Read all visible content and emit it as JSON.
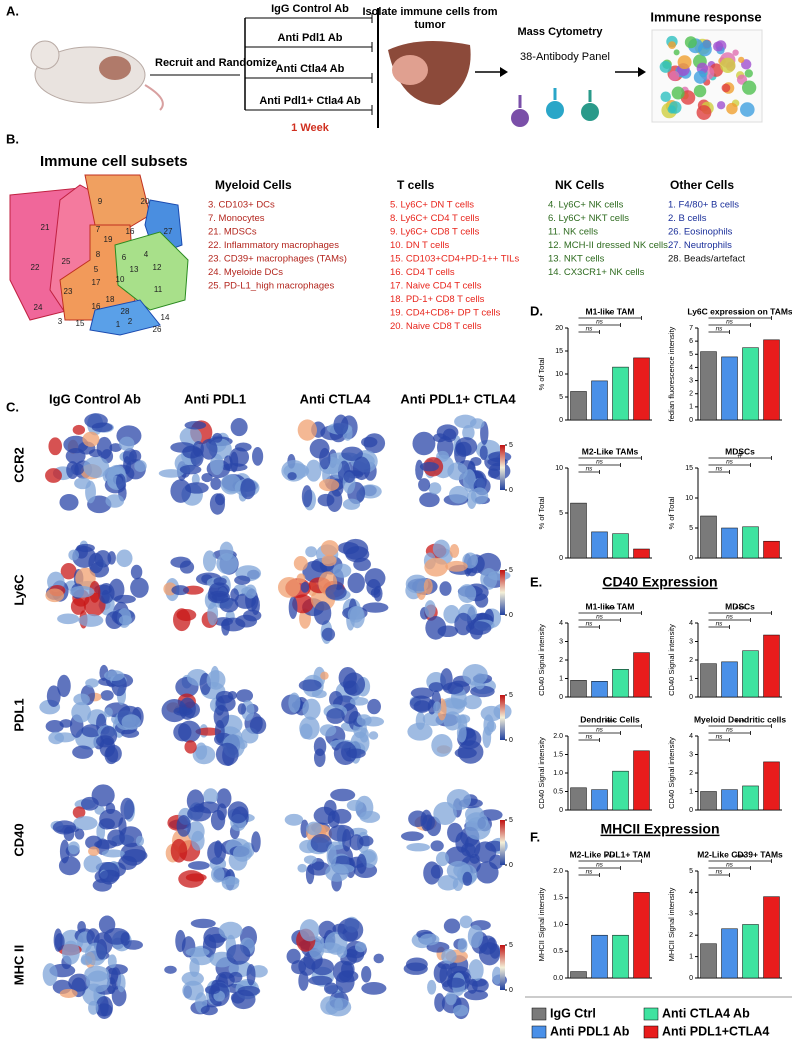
{
  "panel_a": {
    "letter": "A.",
    "recruit": "Recruit and Randomize",
    "treatments": [
      "IgG Control Ab",
      "Anti Pdl1 Ab",
      "Anti Ctla4 Ab",
      "Anti Pdl1+ Ctla4 Ab"
    ],
    "duration": "1 Week",
    "isolate": "Isolate immune cells from tumor",
    "method": "Mass Cytometry",
    "panel": "38-Antibody Panel",
    "result": "Immune response"
  },
  "panel_b": {
    "letter": "B.",
    "title": "Immune cell subsets",
    "map_labels": [
      "9",
      "20",
      "21",
      "7",
      "27",
      "19",
      "16",
      "8",
      "6",
      "4",
      "5",
      "12",
      "13",
      "25",
      "22",
      "17",
      "11",
      "23",
      "10",
      "18",
      "16",
      "28",
      "14",
      "24",
      "3",
      "15",
      "1",
      "2",
      "26"
    ],
    "groups": [
      {
        "title": "Myeloid Cells",
        "color": "#b3261e",
        "items": [
          "3. CD103+ DCs",
          "7. Monocytes",
          "21. MDSCs",
          "22. Inflammatory macrophages",
          "23. CD39+ macrophages (TAMs)",
          "24. Myeloide DCs",
          "25. PD-L1_high macrophages"
        ]
      },
      {
        "title": "T cells",
        "color": "#e8251c",
        "items": [
          "5. Ly6C+ DN T cells",
          "8. Ly6C+ CD4 T cells",
          "9. Ly6C+ CD8 T cells",
          "10. DN T cells",
          "15. CD103+CD4+PD-1++ TILs",
          "16. CD4 T cells",
          "17. Naive CD4 T cells",
          "18. PD-1+ CD8 T cells",
          "19. CD4+CD8+ DP T cells",
          "20. Naive CD8 T cells"
        ]
      },
      {
        "title": "NK Cells",
        "color": "#2e6b1f",
        "items": [
          "4. Ly6C+ NK cells",
          "6. Ly6C+ NKT cells",
          "11. NK cells",
          "12. MCH-II dressed NK cells",
          "13. NKT cells",
          "14. CX3CR1+ NK cells"
        ]
      },
      {
        "title": "Other Cells",
        "color": "#1a2f9a",
        "colors": [
          "#1a2f9a",
          "#1a2f9a",
          "#1a2f9a",
          "#1a2f9a",
          "#111111"
        ],
        "items": [
          "1. F4/80+ B cells",
          "2. B cells",
          "26. Eosinophils",
          "27. Neutrophils",
          "28. Beads/artefact"
        ]
      }
    ]
  },
  "panel_c": {
    "letter": "C.",
    "columns": [
      "IgG Control Ab",
      "Anti PDL1",
      "Anti CTLA4",
      "Anti PDL1+ CTLA4"
    ],
    "rows": [
      "CCR2",
      "Ly6C",
      "PDL1",
      "CD40",
      "MHC II"
    ],
    "colorbar_ticks": [
      0,
      5
    ]
  },
  "panel_d": {
    "letter": "D."
  },
  "panel_e": {
    "letter": "E.",
    "title": "CD40 Expression"
  },
  "panel_f": {
    "letter": "F.",
    "title": "MHCII Expression"
  },
  "legend": [
    {
      "name": "IgG Ctrl",
      "color": "#7a7a7a"
    },
    {
      "name": "Anti CTLA4 Ab",
      "color": "#3fe3a0"
    },
    {
      "name": "Anti PDL1 Ab",
      "color": "#4a90e8"
    },
    {
      "name": "Anti PDL1+CTLA4",
      "color": "#e81c1c"
    }
  ],
  "chart_data": [
    {
      "type": "bar",
      "title": "M1-like TAM",
      "ylabel": "% of Total",
      "values": [
        6.2,
        8.5,
        11.5,
        13.5
      ],
      "ylim": [
        0,
        20
      ],
      "yticks": [
        0,
        5,
        10,
        15,
        20
      ],
      "annotations": [
        "*",
        "ns",
        "ns"
      ]
    },
    {
      "type": "bar",
      "title": "Ly6C expression on TAMs",
      "ylabel": "fedian fluorescence intensity",
      "values": [
        5.2,
        4.8,
        5.5,
        6.1
      ],
      "ylim": [
        0,
        7
      ],
      "yticks": [
        0,
        1,
        2,
        3,
        4,
        5,
        6,
        7
      ],
      "annotations": [
        "*",
        "ns",
        "ns"
      ]
    },
    {
      "type": "bar",
      "title": "M2-Like TAMs",
      "ylabel": "% of Total",
      "values": [
        6.1,
        2.9,
        2.7,
        1.0
      ],
      "ylim": [
        0,
        10
      ],
      "yticks": [
        0,
        5,
        10
      ],
      "annotations": [
        "*",
        "ns",
        "ns"
      ]
    },
    {
      "type": "bar",
      "title": "MDSCs",
      "ylabel": "% of Total",
      "values": [
        7,
        5,
        5.2,
        2.8
      ],
      "ylim": [
        0,
        15
      ],
      "yticks": [
        0,
        5,
        10,
        15
      ],
      "annotations": [
        "#",
        "ns",
        "ns"
      ]
    },
    {
      "type": "bar",
      "title": "M1-like TAM",
      "ylabel": "CD40 Signal intensity",
      "values": [
        0.9,
        0.85,
        1.5,
        2.4
      ],
      "ylim": [
        0,
        4
      ],
      "yticks": [
        0,
        1,
        2,
        3,
        4
      ],
      "annotations": [
        "***",
        "ns",
        "ns"
      ]
    },
    {
      "type": "bar",
      "title": "MDSCs",
      "ylabel": "CD40 Signal intensity",
      "values": [
        1.8,
        1.9,
        2.5,
        3.35
      ],
      "ylim": [
        0,
        4
      ],
      "yticks": [
        0,
        1,
        2,
        3,
        4
      ],
      "annotations": [
        "***",
        "ns",
        "ns"
      ]
    },
    {
      "type": "bar",
      "title": "Dendritic  Cells",
      "ylabel": "CD40 Signal intensity",
      "values": [
        0.6,
        0.55,
        1.05,
        1.6
      ],
      "ylim": [
        0,
        2
      ],
      "yticks": [
        0,
        {
          "value": 0.5,
          "label": "0.5"
        },
        {
          "value": 1,
          "label": "1.0"
        },
        {
          "value": 1.5,
          "label": "1.5"
        },
        {
          "value": 2,
          "label": "2.0"
        }
      ],
      "annotations": [
        "***",
        "ns",
        "ns"
      ]
    },
    {
      "type": "bar",
      "title": "Myeloid Dendritic cells",
      "ylabel": "CD40 Signal intensity",
      "values": [
        1.0,
        1.1,
        1.3,
        2.6
      ],
      "ylim": [
        0,
        4
      ],
      "yticks": [
        0,
        1,
        2,
        3,
        4
      ],
      "annotations": [
        "***",
        "ns",
        "ns"
      ]
    },
    {
      "type": "bar",
      "title": "M2-Like PDL1+ TAM",
      "ylabel": "MHCII Signal intensity",
      "values": [
        0.12,
        0.8,
        0.8,
        1.6
      ],
      "ylim": [
        0,
        2
      ],
      "yticks": [
        {
          "value": 0,
          "label": "0.0"
        },
        {
          "value": 0.5,
          "label": "0.5"
        },
        {
          "value": 1,
          "label": "1.0"
        },
        {
          "value": 1.5,
          "label": "1.5"
        },
        {
          "value": 2,
          "label": "2.0"
        }
      ],
      "annotations": [
        "***",
        "ns",
        "ns"
      ]
    },
    {
      "type": "bar",
      "title": "M2-Like CD39+ TAMs",
      "ylabel": "MHCII Signal intensity",
      "values": [
        1.6,
        2.3,
        2.5,
        3.8
      ],
      "ylim": [
        0,
        5
      ],
      "yticks": [
        0,
        1,
        2,
        3,
        4,
        5
      ],
      "annotations": [
        "***",
        "ns",
        "ns"
      ]
    }
  ]
}
